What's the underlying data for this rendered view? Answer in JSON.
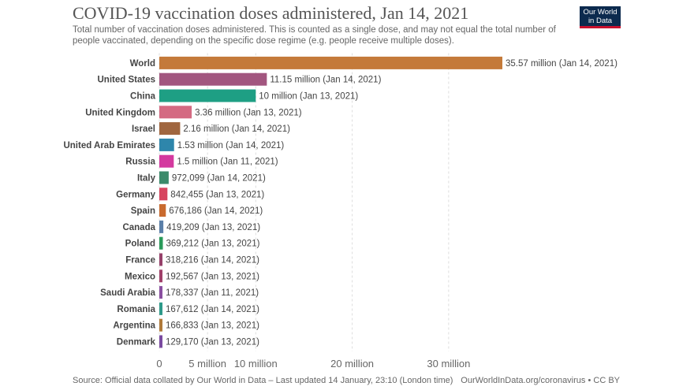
{
  "header": {
    "title": "COVID-19 vaccination doses administered, Jan 14, 2021",
    "subtitle": "Total number of vaccination doses administered. This is counted as a single dose, and may not equal the total number of people vaccinated, depending on the specific dose regime (e.g. people receive multiple doses).",
    "logo_line1": "Our World",
    "logo_line2": "in Data"
  },
  "footer": {
    "source": "Source: Official data collated by Our World in Data – Last updated 14 January, 23:10 (London time)",
    "credit": "OurWorldInData.org/coronavirus • CC BY"
  },
  "chart_data": {
    "type": "bar",
    "orientation": "horizontal",
    "title": "COVID-19 vaccination doses administered, Jan 14, 2021",
    "xlim": [
      0,
      35570000
    ],
    "xticks": [
      {
        "value": 0,
        "label": "0"
      },
      {
        "value": 5000000,
        "label": "5 million"
      },
      {
        "value": 10000000,
        "label": "10 million"
      },
      {
        "value": 20000000,
        "label": "20 million"
      },
      {
        "value": 30000000,
        "label": "30 million"
      }
    ],
    "grid": true,
    "categories": [
      "World",
      "United States",
      "China",
      "United Kingdom",
      "Israel",
      "United Arab Emirates",
      "Russia",
      "Italy",
      "Germany",
      "Spain",
      "Canada",
      "Poland",
      "France",
      "Mexico",
      "Saudi Arabia",
      "Romania",
      "Argentina",
      "Denmark"
    ],
    "values": [
      35570000,
      11150000,
      10000000,
      3360000,
      2160000,
      1530000,
      1500000,
      972099,
      842455,
      676186,
      419209,
      369212,
      318216,
      192567,
      178337,
      167612,
      166833,
      129170
    ],
    "labels": [
      "35.57 million (Jan 14, 2021)",
      "11.15 million (Jan 14, 2021)",
      "10 million (Jan 13, 2021)",
      "3.36 million (Jan 13, 2021)",
      "2.16 million (Jan 14, 2021)",
      "1.53 million (Jan 14, 2021)",
      "1.5 million (Jan 11, 2021)",
      "972,099 (Jan 14, 2021)",
      "842,455 (Jan 13, 2021)",
      "676,186 (Jan 14, 2021)",
      "419,209 (Jan 13, 2021)",
      "369,212 (Jan 13, 2021)",
      "318,216 (Jan 14, 2021)",
      "192,567 (Jan 13, 2021)",
      "178,337 (Jan 11, 2021)",
      "167,612 (Jan 14, 2021)",
      "166,833 (Jan 13, 2021)",
      "129,170 (Jan 13, 2021)"
    ],
    "colors": [
      "#c47a3a",
      "#a2567f",
      "#1e9f84",
      "#d46a82",
      "#a0663f",
      "#2e86ab",
      "#d4399f",
      "#3b8a6a",
      "#d7455f",
      "#c96a2e",
      "#5a7fa8",
      "#2a9a5a",
      "#96406a",
      "#a0406a",
      "#8a4fa0",
      "#2e9a8a",
      "#b07a3a",
      "#7a4aa0"
    ]
  }
}
